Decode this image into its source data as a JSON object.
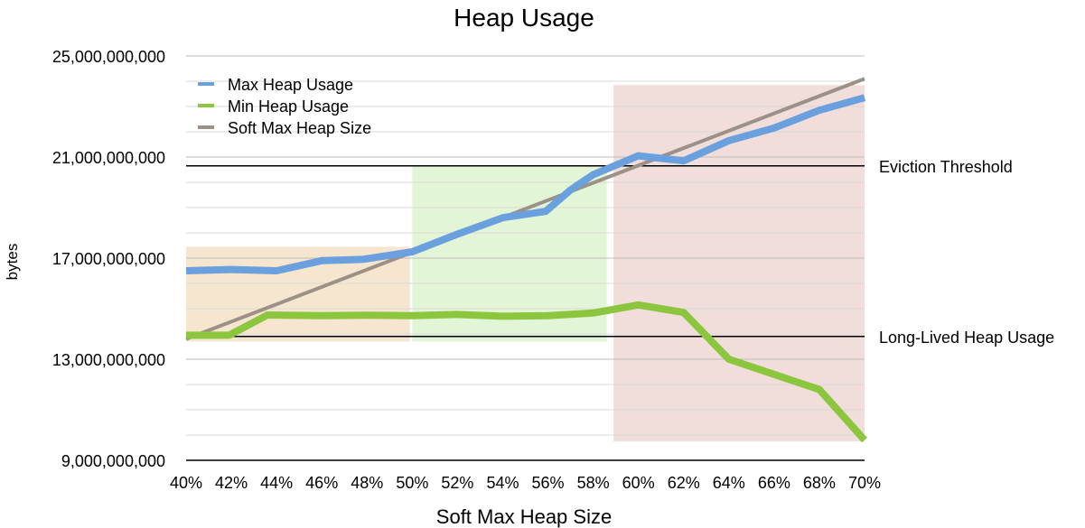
{
  "chart_data": {
    "type": "line",
    "title": "Heap Usage",
    "xlabel": "Soft Max Heap Size",
    "ylabel": "bytes",
    "categories": [
      "40%",
      "42%",
      "44%",
      "46%",
      "48%",
      "50%",
      "52%",
      "54%",
      "56%",
      "58%",
      "60%",
      "62%",
      "64%",
      "66%",
      "68%",
      "70%"
    ],
    "y_ticks": [
      "25,000,000,000",
      "21,000,000,000",
      "17,000,000,000",
      "13,000,000,000",
      "9,000,000,000"
    ],
    "ylim": [
      9000000000,
      25000000000
    ],
    "grid": true,
    "legend_position": "top-left",
    "series": [
      {
        "name": "Max Heap Usage",
        "color": "#6aa0dd",
        "x": [
          40,
          42,
          44,
          46,
          47.8,
          50,
          52,
          54,
          55.9,
          57,
          58,
          60,
          62,
          64,
          66,
          68,
          70
        ],
        "values": [
          16500000000,
          16550000000,
          16500000000,
          16900000000,
          16950000000,
          17250000000,
          17950000000,
          18600000000,
          18850000000,
          19700000000,
          20300000000,
          21050000000,
          20850000000,
          21650000000,
          22150000000,
          22850000000,
          23350000000
        ]
      },
      {
        "name": "Min Heap Usage",
        "color": "#8cc63f",
        "x": [
          40,
          41.9,
          43.6,
          46,
          48,
          50,
          52,
          54,
          56,
          58,
          60,
          62,
          64,
          66,
          68,
          70
        ],
        "values": [
          13950000000,
          13950000000,
          14750000000,
          14720000000,
          14740000000,
          14720000000,
          14770000000,
          14700000000,
          14720000000,
          14830000000,
          15150000000,
          14850000000,
          13000000000,
          12400000000,
          11800000000,
          9800000000
        ]
      },
      {
        "name": "Soft Max Heap Size",
        "color": "#9b9186",
        "x": [
          40,
          70
        ],
        "values": [
          13800000000,
          24100000000
        ]
      }
    ],
    "reference_lines": [
      {
        "label": "Eviction Threshold",
        "value": 20650000000
      },
      {
        "label": "Long-Lived Heap Usage",
        "value": 13900000000
      }
    ],
    "shaded_regions": [
      {
        "x_start": 40,
        "x_end": 49.9,
        "y_start": 13700000000,
        "y_end": 17450000000,
        "color": "#f7e6cf"
      },
      {
        "x_start": 50,
        "x_end": 58.6,
        "y_start": 13700000000,
        "y_end": 20650000000,
        "color": "#e2f5d6"
      },
      {
        "x_start": 58.9,
        "x_end": 70,
        "y_start": 9750000000,
        "y_end": 23850000000,
        "color": "#f1ddd9"
      }
    ]
  }
}
